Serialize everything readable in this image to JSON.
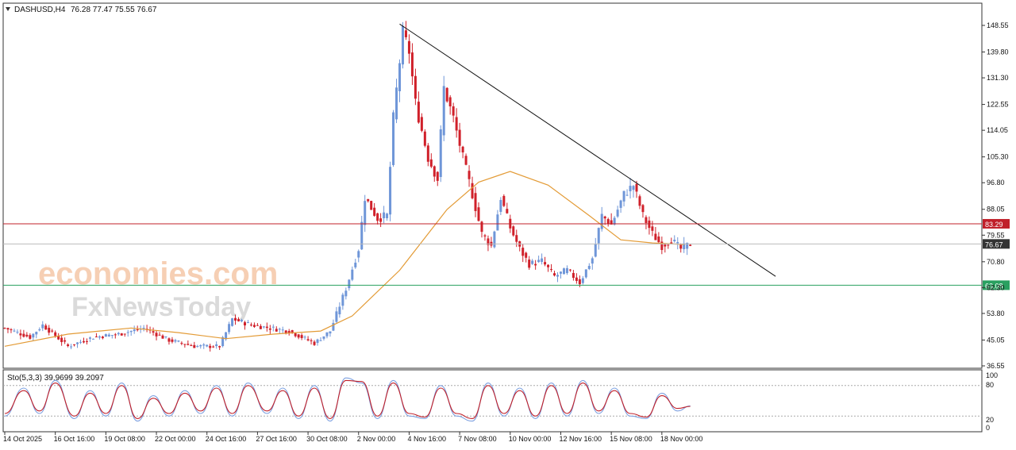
{
  "header": {
    "symbol": "DASHUSD,H4",
    "ohlc": "76.28 77.47 75.55 76.67"
  },
  "indicator": {
    "label": "Sto(5,3,3) 39.9699 39.2097",
    "scale_labels": [
      "100",
      "80",
      "20",
      "0"
    ]
  },
  "watermark": {
    "line1": "economies.com",
    "line2": "FxNewsToday"
  },
  "chart_data": [
    {
      "type": "candlestick",
      "title": "",
      "ylim": [
        36.55,
        153.5
      ],
      "y_ticks": [
        148.55,
        139.8,
        131.3,
        122.55,
        114.05,
        105.3,
        96.8,
        88.05,
        79.55,
        70.8,
        62.3,
        53.8,
        45.05,
        36.55
      ],
      "y_tick_labels": [
        "148.55",
        "139.80",
        "131.30",
        "122.55",
        "114.05",
        "105.30",
        "96.80",
        "88.05",
        "79.55",
        "70.80",
        "62.30",
        "53.80",
        "45.05",
        "36.55"
      ],
      "x_tick_labels": [
        "14 Oct 2025",
        "16 Oct 16:00",
        "19 Oct 08:00",
        "22 Oct 00:00",
        "24 Oct 16:00",
        "27 Oct 16:00",
        "30 Oct 08:00",
        "2 Nov 00:00",
        "4 Nov 16:00",
        "7 Nov 08:00",
        "10 Nov 00:00",
        "12 Nov 16:00",
        "15 Nov 08:00",
        "18 Nov 00:00"
      ],
      "x_tick_index": [
        0,
        16,
        32,
        48,
        64,
        80,
        96,
        112,
        128,
        144,
        160,
        176,
        192,
        208
      ],
      "levels": [
        {
          "value": 83.29,
          "label": "83.29",
          "color": "#c0202a"
        },
        {
          "value": 76.67,
          "label": "76.67",
          "color": "#333333"
        },
        {
          "value": 63.08,
          "label": "63.08",
          "color": "#2aa060"
        }
      ],
      "trendline": {
        "from": {
          "index": 125,
          "value": 149
        },
        "to": {
          "index": 244,
          "value": 66
        }
      },
      "moving_average": [
        {
          "index": 0,
          "value": 43
        },
        {
          "index": 20,
          "value": 47
        },
        {
          "index": 40,
          "value": 49
        },
        {
          "index": 55,
          "value": 47.5
        },
        {
          "index": 70,
          "value": 45.5
        },
        {
          "index": 85,
          "value": 47
        },
        {
          "index": 100,
          "value": 48
        },
        {
          "index": 110,
          "value": 53
        },
        {
          "index": 125,
          "value": 68
        },
        {
          "index": 140,
          "value": 88
        },
        {
          "index": 150,
          "value": 97
        },
        {
          "index": 160,
          "value": 100.5
        },
        {
          "index": 172,
          "value": 96
        },
        {
          "index": 185,
          "value": 86
        },
        {
          "index": 195,
          "value": 78
        },
        {
          "index": 205,
          "value": 77
        },
        {
          "index": 215,
          "value": 76.5
        }
      ],
      "colors": {
        "bull": "#6f96d8",
        "bear": "#d0202a",
        "ma": "#e39b36"
      },
      "key_points": [
        {
          "index": 0,
          "close": 49
        },
        {
          "index": 8,
          "close": 46
        },
        {
          "index": 12,
          "close": 50
        },
        {
          "index": 20,
          "close": 43
        },
        {
          "index": 28,
          "close": 46
        },
        {
          "index": 36,
          "close": 47
        },
        {
          "index": 44,
          "close": 49
        },
        {
          "index": 52,
          "close": 45
        },
        {
          "index": 60,
          "close": 43
        },
        {
          "index": 68,
          "close": 43
        },
        {
          "index": 72,
          "close": 52
        },
        {
          "index": 78,
          "close": 50
        },
        {
          "index": 90,
          "close": 48
        },
        {
          "index": 98,
          "close": 44
        },
        {
          "index": 103,
          "close": 48
        },
        {
          "index": 108,
          "close": 62
        },
        {
          "index": 112,
          "close": 75
        },
        {
          "index": 114,
          "close": 92
        },
        {
          "index": 118,
          "close": 85
        },
        {
          "index": 121,
          "close": 86
        },
        {
          "index": 123,
          "close": 118
        },
        {
          "index": 126,
          "close": 146
        },
        {
          "index": 128,
          "close": 140
        },
        {
          "index": 130,
          "close": 123
        },
        {
          "index": 134,
          "close": 105
        },
        {
          "index": 137,
          "close": 98
        },
        {
          "index": 139,
          "close": 128
        },
        {
          "index": 142,
          "close": 118
        },
        {
          "index": 145,
          "close": 105
        },
        {
          "index": 148,
          "close": 93
        },
        {
          "index": 151,
          "close": 80
        },
        {
          "index": 154,
          "close": 76
        },
        {
          "index": 157,
          "close": 92
        },
        {
          "index": 160,
          "close": 82
        },
        {
          "index": 163,
          "close": 75
        },
        {
          "index": 166,
          "close": 70
        },
        {
          "index": 170,
          "close": 71
        },
        {
          "index": 174,
          "close": 66
        },
        {
          "index": 178,
          "close": 68
        },
        {
          "index": 182,
          "close": 64
        },
        {
          "index": 186,
          "close": 72
        },
        {
          "index": 189,
          "close": 86
        },
        {
          "index": 192,
          "close": 83
        },
        {
          "index": 196,
          "close": 93
        },
        {
          "index": 199,
          "close": 96
        },
        {
          "index": 202,
          "close": 86
        },
        {
          "index": 205,
          "close": 80
        },
        {
          "index": 208,
          "close": 76
        },
        {
          "index": 211,
          "close": 78
        },
        {
          "index": 214,
          "close": 75
        },
        {
          "index": 217,
          "close": 76.67
        }
      ]
    },
    {
      "type": "line",
      "title": "",
      "ylim": [
        0,
        100
      ],
      "series": [
        {
          "name": "",
          "color": "#7da0e0",
          "x": [
            0,
            6,
            11,
            16,
            22,
            27,
            32,
            37,
            42,
            47,
            52,
            57,
            62,
            67,
            72,
            77,
            83,
            88,
            93,
            98,
            103,
            108,
            113,
            118,
            123,
            128,
            133,
            138,
            143,
            148,
            153,
            158,
            163,
            168,
            173,
            178,
            183,
            188,
            193,
            198,
            203,
            208,
            213,
            217
          ],
          "y": [
            20,
            75,
            25,
            90,
            15,
            70,
            20,
            85,
            10,
            60,
            20,
            70,
            25,
            80,
            20,
            85,
            25,
            75,
            15,
            80,
            10,
            95,
            85,
            15,
            90,
            20,
            15,
            80,
            20,
            10,
            85,
            20,
            75,
            15,
            85,
            20,
            90,
            25,
            75,
            20,
            15,
            65,
            30,
            40
          ]
        },
        {
          "name": "",
          "color": "#c0202a",
          "x": [
            0,
            6,
            11,
            16,
            22,
            27,
            32,
            37,
            42,
            47,
            52,
            57,
            62,
            67,
            72,
            77,
            83,
            88,
            93,
            98,
            103,
            108,
            113,
            118,
            123,
            128,
            133,
            138,
            143,
            148,
            153,
            158,
            163,
            168,
            173,
            178,
            183,
            188,
            193,
            198,
            203,
            208,
            213,
            217
          ],
          "y": [
            25,
            70,
            30,
            85,
            20,
            65,
            25,
            80,
            15,
            55,
            25,
            65,
            30,
            75,
            25,
            80,
            30,
            70,
            20,
            75,
            15,
            90,
            88,
            20,
            85,
            25,
            18,
            75,
            25,
            15,
            80,
            25,
            70,
            20,
            80,
            25,
            85,
            30,
            70,
            25,
            18,
            60,
            35,
            39
          ]
        }
      ],
      "levels": [
        80,
        20
      ]
    }
  ]
}
